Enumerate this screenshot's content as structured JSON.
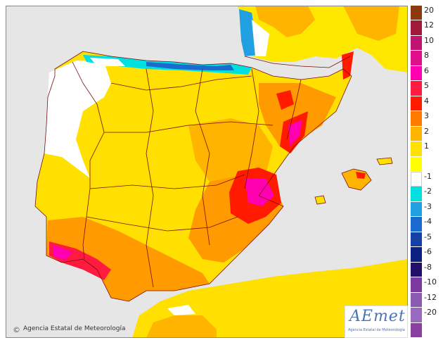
{
  "credit": "Agencia Estatal de Meteorología",
  "credit_symbol": "©",
  "logo": {
    "wordmark": "AEmet",
    "subtitle": "Agencia Estatal de Meteorología"
  },
  "legend": {
    "labels": [
      "20",
      "12",
      "10",
      "8",
      "6",
      "5",
      "4",
      "3",
      "2",
      "1",
      "-1",
      "-2",
      "-3",
      "-4",
      "-5",
      "-6",
      "-8",
      "-10",
      "-12",
      "-20"
    ],
    "colors_positive": [
      "#8b3a0f",
      "#a0183a",
      "#c01470",
      "#e0108c",
      "#ff00b0",
      "#ff1a40",
      "#ff1a00",
      "#ff7a00",
      "#ffb400",
      "#ffe000",
      "#ffff00"
    ],
    "colors_negative": [
      "#ffffff",
      "#00e0e0",
      "#20a0e0",
      "#1a6ad0",
      "#1440a8",
      "#0a2080",
      "#20106a",
      "#7a3aa0",
      "#8a5ab0",
      "#9a6ac0",
      "#8a40a0"
    ]
  },
  "colors": {
    "sea": "#e6e6e6",
    "land_outside": "#e6e6e6",
    "border": "#7a0c0c"
  },
  "map": {
    "subject": "Iberian Peninsula and Balearic Islands temperature anomaly"
  }
}
